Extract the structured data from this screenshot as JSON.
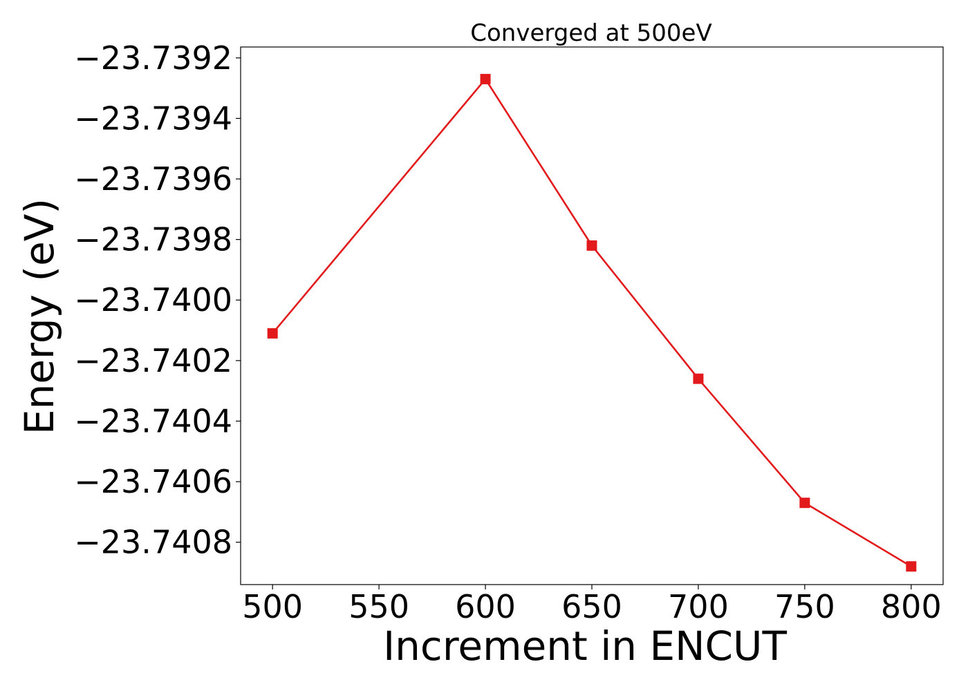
{
  "chart_data": {
    "type": "line",
    "title": "Converged at 500eV",
    "xlabel": "Increment in ENCUT",
    "ylabel": "Energy (eV)",
    "x": [
      500,
      600,
      650,
      700,
      750,
      800
    ],
    "series": [
      {
        "values": [
          -23.74011,
          -23.73927,
          -23.73982,
          -23.74026,
          -23.74067,
          -23.74088
        ],
        "color": "#e31a1c",
        "marker": "square"
      }
    ],
    "x_ticks": [
      500,
      550,
      600,
      650,
      700,
      750,
      800
    ],
    "x_tick_labels": [
      "500",
      "550",
      "600",
      "650",
      "700",
      "750",
      "800"
    ],
    "y_ticks": [
      -23.7392,
      -23.7394,
      -23.7396,
      -23.7398,
      -23.74,
      -23.7402,
      -23.7404,
      -23.7406,
      -23.7408
    ],
    "y_tick_labels": [
      "−23.7392",
      "−23.7394",
      "−23.7396",
      "−23.7398",
      "−23.7400",
      "−23.7402",
      "−23.7404",
      "−23.7406",
      "−23.7408"
    ],
    "xlim": [
      485,
      815
    ],
    "ylim": [
      -23.74094,
      -23.739164
    ],
    "grid": false,
    "legend": "none"
  }
}
